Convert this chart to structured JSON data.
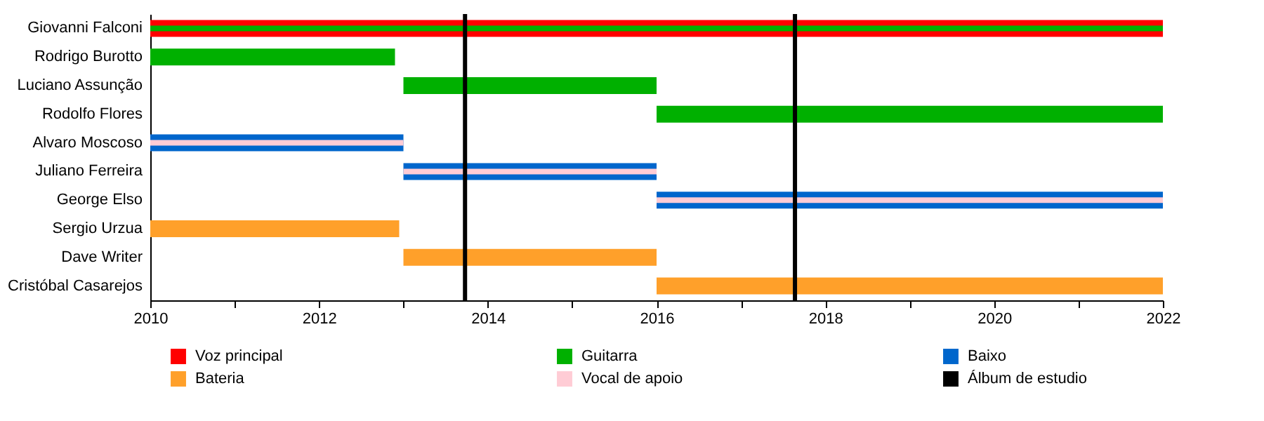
{
  "chart_data": {
    "type": "bar",
    "orientation": "horizontal",
    "legend": "bottom",
    "categories": [
      "Giovanni Falconi",
      "Rodrigo Burotto",
      "Luciano Assunção",
      "Rodolfo Flores",
      "Alvaro Moscoso",
      "Juliano Ferreira",
      "George Elso",
      "Sergio Urzua",
      "Dave Writer",
      "Cristóbal Casarejos"
    ],
    "series": [
      {
        "name": "Voz principal",
        "color": "#ff0000",
        "base": [
          2010,
          null,
          null,
          null,
          null,
          null,
          null,
          null,
          null,
          null
        ],
        "values": [
          12,
          null,
          null,
          null,
          null,
          null,
          null,
          null,
          null,
          null
        ]
      },
      {
        "name": "Guitarra",
        "color": "#00b000",
        "base": [
          2010,
          2010,
          2013,
          2016,
          null,
          null,
          null,
          null,
          null,
          null
        ],
        "values": [
          12,
          2.9,
          3,
          6,
          null,
          null,
          null,
          null,
          null,
          null
        ]
      },
      {
        "name": "Baixo",
        "color": "#0066cc",
        "base": [
          null,
          null,
          null,
          null,
          2010,
          2013,
          2016,
          null,
          null,
          null
        ],
        "values": [
          null,
          null,
          null,
          null,
          3,
          3,
          6,
          null,
          null,
          null
        ]
      },
      {
        "name": "Bateria",
        "color": "#ffa02a",
        "base": [
          null,
          null,
          null,
          null,
          null,
          null,
          null,
          2010,
          2013,
          2016
        ],
        "values": [
          null,
          null,
          null,
          null,
          null,
          null,
          null,
          2.95,
          3,
          6
        ]
      },
      {
        "name": "Vocal de apoio",
        "color": "#ffccd5",
        "base": [
          null,
          null,
          null,
          null,
          2010,
          2013,
          2016,
          null,
          null,
          null
        ],
        "values": [
          null,
          null,
          null,
          null,
          3,
          3,
          6,
          null,
          null,
          null
        ]
      }
    ],
    "xlim": [
      2010,
      2022
    ],
    "xticks": [
      2010,
      {
        "value": 2011,
        "label": null
      },
      2012,
      {
        "value": 2013,
        "label": null
      },
      2014,
      {
        "value": 2015,
        "label": null
      },
      2016,
      {
        "value": 2017,
        "label": null
      },
      2018,
      {
        "value": 2019,
        "label": null
      },
      2020,
      {
        "value": 2021,
        "label": null
      },
      2022
    ],
    "ref_lines": [
      {
        "axis": "x",
        "value": 2013.73,
        "label": "Álbum de estudio",
        "color": "#000000"
      },
      {
        "axis": "x",
        "value": 2017.64,
        "color": "#000000"
      }
    ],
    "grid": false
  }
}
